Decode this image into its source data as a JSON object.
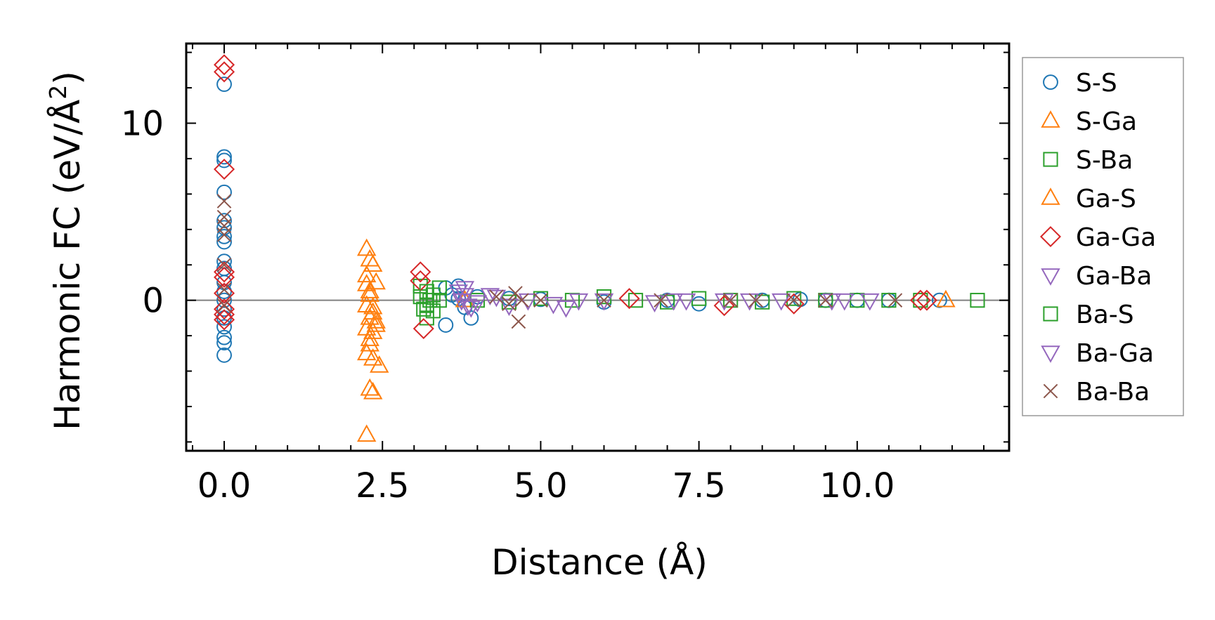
{
  "chart_data": {
    "type": "scatter",
    "title": "",
    "xlabel": "Distance (Å)",
    "ylabel": "Harmonic FC (eV/Å",
    "ylabel_sup": "2",
    "ylabel_close": ")",
    "xlim": [
      -0.6,
      12.4
    ],
    "ylim": [
      -8.5,
      14.5
    ],
    "xticks": [
      0.0,
      2.5,
      5.0,
      7.5,
      10.0
    ],
    "xtick_labels": [
      "0.0",
      "2.5",
      "5.0",
      "7.5",
      "10.0"
    ],
    "yticks": [
      0,
      10
    ],
    "ytick_labels": [
      "0",
      "10"
    ],
    "reference_line_y": 0,
    "legend_position": "outside-right",
    "series": [
      {
        "name": "S-S",
        "marker": "circle",
        "color": "#1f77b4",
        "points": [
          [
            0,
            12.2
          ],
          [
            0,
            8.1
          ],
          [
            0,
            7.9
          ],
          [
            0,
            6.1
          ],
          [
            0,
            4.5
          ],
          [
            0,
            4.1
          ],
          [
            0,
            3.6
          ],
          [
            0,
            3.3
          ],
          [
            0,
            2.2
          ],
          [
            0,
            1.8
          ],
          [
            0,
            1.0
          ],
          [
            0,
            0.5
          ],
          [
            0,
            0
          ],
          [
            0,
            -0.5
          ],
          [
            0,
            -1.0
          ],
          [
            0,
            -1.5
          ],
          [
            0,
            -2.1
          ],
          [
            0,
            -2.4
          ],
          [
            0,
            -3.1
          ],
          [
            3.5,
            0.7
          ],
          [
            3.6,
            0.3
          ],
          [
            3.5,
            -1.4
          ],
          [
            3.7,
            0.8
          ],
          [
            3.8,
            -0.4
          ],
          [
            3.9,
            -1.0
          ],
          [
            3.7,
            0.1
          ],
          [
            4.0,
            0.2
          ],
          [
            4.5,
            0.1
          ],
          [
            5.0,
            0.05
          ],
          [
            6.0,
            -0.1
          ],
          [
            7.0,
            0.0
          ],
          [
            7.5,
            -0.2
          ],
          [
            8.5,
            0.0
          ],
          [
            9.1,
            0.05
          ],
          [
            9.5,
            0.0
          ],
          [
            10.0,
            0.0
          ],
          [
            10.5,
            0.0
          ],
          [
            11.3,
            0.0
          ]
        ]
      },
      {
        "name": "S-Ga",
        "marker": "triangle-up",
        "color": "#ff7f0e",
        "points": [
          [
            2.25,
            2.9
          ],
          [
            2.3,
            2.3
          ],
          [
            2.35,
            2.0
          ],
          [
            2.25,
            1.4
          ],
          [
            2.4,
            1.0
          ],
          [
            2.3,
            0.3
          ],
          [
            2.25,
            -0.3
          ],
          [
            2.35,
            -0.7
          ],
          [
            2.3,
            -1.0
          ],
          [
            2.4,
            -1.2
          ],
          [
            2.25,
            -1.6
          ],
          [
            2.3,
            -2.2
          ],
          [
            2.35,
            -1.8
          ],
          [
            2.3,
            -2.5
          ],
          [
            2.25,
            -3.0
          ],
          [
            2.35,
            -3.3
          ],
          [
            2.45,
            -3.7
          ],
          [
            2.3,
            -5.0
          ],
          [
            2.35,
            -5.2
          ],
          [
            2.25,
            -7.6
          ],
          [
            3.8,
            0.0
          ],
          [
            11.4,
            0.0
          ]
        ]
      },
      {
        "name": "S-Ba",
        "marker": "square",
        "color": "#2ca02c",
        "points": [
          [
            3.1,
            0.8
          ],
          [
            3.1,
            0.2
          ],
          [
            3.15,
            -0.5
          ],
          [
            3.2,
            -1.0
          ],
          [
            3.3,
            0.3
          ],
          [
            3.4,
            0.0
          ],
          [
            3.2,
            -0.3
          ],
          [
            4.0,
            0.0
          ],
          [
            4.5,
            -0.1
          ],
          [
            5.0,
            0.1
          ],
          [
            5.5,
            0.0
          ],
          [
            6.0,
            0.2
          ],
          [
            6.5,
            0.0
          ],
          [
            7.0,
            -0.1
          ],
          [
            7.5,
            0.1
          ],
          [
            8.0,
            0.0
          ],
          [
            8.5,
            -0.1
          ],
          [
            9.0,
            0.1
          ],
          [
            9.5,
            0.0
          ],
          [
            10.0,
            0.0
          ],
          [
            10.5,
            0.0
          ],
          [
            11.0,
            0.0
          ],
          [
            11.9,
            0.0
          ]
        ]
      },
      {
        "name": "Ga-S",
        "marker": "triangle-up",
        "color": "#ff7f0e",
        "points": [
          [
            2.3,
            0.5
          ],
          [
            2.35,
            -0.4
          ],
          [
            2.4,
            -1.4
          ],
          [
            2.25,
            0.9
          ]
        ]
      },
      {
        "name": "Ga-Ga",
        "marker": "diamond",
        "color": "#d62728",
        "points": [
          [
            0,
            13.3
          ],
          [
            0,
            12.9
          ],
          [
            0,
            7.4
          ],
          [
            0,
            1.6
          ],
          [
            0,
            1.3
          ],
          [
            0,
            0.4
          ],
          [
            0,
            -0.5
          ],
          [
            0,
            -0.8
          ],
          [
            0,
            -1.1
          ],
          [
            3.1,
            1.6
          ],
          [
            3.1,
            1.1
          ],
          [
            3.15,
            -1.6
          ],
          [
            6.4,
            0.1
          ],
          [
            7.9,
            -0.3
          ],
          [
            9.0,
            -0.2
          ],
          [
            11.0,
            0.0
          ],
          [
            11.1,
            0.0
          ]
        ]
      },
      {
        "name": "Ga-Ba",
        "marker": "triangle-down",
        "color": "#9467bd",
        "points": [
          [
            3.7,
            0.5
          ],
          [
            3.75,
            0.0
          ],
          [
            3.8,
            0.3
          ],
          [
            3.85,
            -0.3
          ],
          [
            4.0,
            -0.1
          ],
          [
            4.3,
            0.2
          ],
          [
            4.5,
            -0.3
          ],
          [
            4.8,
            0.0
          ],
          [
            5.2,
            -0.2
          ],
          [
            5.6,
            0.0
          ],
          [
            6.0,
            0.0
          ],
          [
            6.8,
            -0.1
          ],
          [
            7.3,
            0.0
          ],
          [
            7.9,
            0.0
          ],
          [
            8.3,
            0.0
          ],
          [
            8.8,
            0.0
          ],
          [
            9.6,
            0.0
          ],
          [
            10.2,
            0.0
          ]
        ]
      },
      {
        "name": "Ba-S",
        "marker": "square",
        "color": "#2ca02c",
        "points": [
          [
            3.2,
            0.5
          ],
          [
            3.3,
            -0.6
          ],
          [
            3.4,
            0.7
          ],
          [
            3.25,
            0.0
          ]
        ]
      },
      {
        "name": "Ba-Ga",
        "marker": "triangle-down",
        "color": "#9467bd",
        "points": [
          [
            3.8,
            0.7
          ],
          [
            3.9,
            -0.4
          ],
          [
            4.2,
            0.3
          ],
          [
            5.4,
            -0.4
          ],
          [
            7.1,
            0.0
          ],
          [
            9.8,
            0.0
          ]
        ]
      },
      {
        "name": "Ba-Ba",
        "marker": "x",
        "color": "#8c564b",
        "points": [
          [
            0,
            5.6
          ],
          [
            0,
            4.7
          ],
          [
            0,
            4.2
          ],
          [
            0,
            3.7
          ],
          [
            0,
            2.0
          ],
          [
            0,
            0.6
          ],
          [
            0,
            -0.3
          ],
          [
            4.3,
            0.2
          ],
          [
            4.5,
            -0.2
          ],
          [
            4.6,
            0.4
          ],
          [
            4.65,
            -1.2
          ],
          [
            4.7,
            0.0
          ],
          [
            5.0,
            0.0
          ],
          [
            6.0,
            0.0
          ],
          [
            6.9,
            0.0
          ],
          [
            8.0,
            0.0
          ],
          [
            8.4,
            0.0
          ],
          [
            9.0,
            0.0
          ],
          [
            9.5,
            0.0
          ],
          [
            10.6,
            0.0
          ]
        ]
      }
    ]
  }
}
